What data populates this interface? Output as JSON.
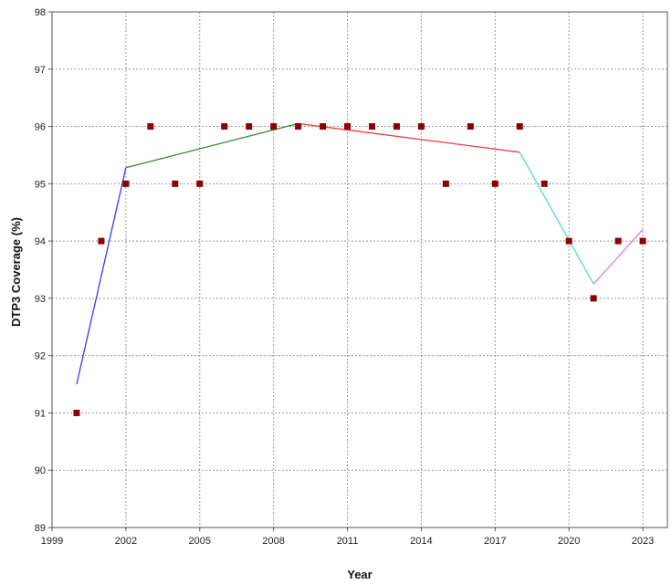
{
  "chart_data": {
    "type": "scatter",
    "title": "",
    "xlabel": "Year",
    "ylabel": "DTP3 Coverage (%)",
    "xlim": [
      1999,
      2024
    ],
    "ylim": [
      89,
      98
    ],
    "x_ticks": [
      1999,
      2002,
      2005,
      2008,
      2011,
      2014,
      2017,
      2020,
      2023
    ],
    "y_ticks": [
      89,
      90,
      91,
      92,
      93,
      94,
      95,
      96,
      97,
      98
    ],
    "grid": true,
    "series": [
      {
        "kind": "points",
        "color": "#8b0000",
        "x": [
          2000,
          2001,
          2002,
          2003,
          2004,
          2005,
          2006,
          2007,
          2008,
          2009,
          2010,
          2011,
          2012,
          2013,
          2014,
          2015,
          2016,
          2017,
          2018,
          2019,
          2020,
          2021,
          2022,
          2023
        ],
        "y": [
          91,
          94,
          95,
          96,
          95,
          95,
          96,
          96,
          96,
          96,
          96,
          96,
          96,
          96,
          96,
          95,
          96,
          95,
          96,
          95,
          94,
          93,
          94,
          94
        ]
      }
    ],
    "trend_segments": [
      {
        "color": "#3b3bf0",
        "x": [
          2000,
          2002
        ],
        "y": [
          91.5,
          95.28
        ]
      },
      {
        "color": "#2e8b2e",
        "x": [
          2002,
          2009
        ],
        "y": [
          95.28,
          96.05
        ]
      },
      {
        "color": "#f03c3c",
        "x": [
          2009,
          2018
        ],
        "y": [
          96.05,
          95.55
        ]
      },
      {
        "color": "#4fd8d8",
        "x": [
          2018,
          2021
        ],
        "y": [
          95.55,
          93.25
        ]
      },
      {
        "color": "#e07ae0",
        "x": [
          2021,
          2023
        ],
        "y": [
          93.25,
          94.2
        ]
      }
    ]
  }
}
